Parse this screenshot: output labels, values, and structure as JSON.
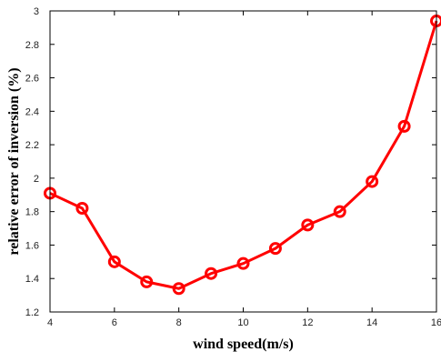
{
  "chart_data": {
    "type": "line",
    "title": "",
    "xlabel": "wind speed(m/s)",
    "ylabel": "relative error of inversion (%)",
    "xlim": [
      4,
      16
    ],
    "ylim": [
      1.2,
      3
    ],
    "xticks": [
      4,
      6,
      8,
      10,
      12,
      14,
      16
    ],
    "yticks": [
      1.2,
      1.4,
      1.6,
      1.8,
      2,
      2.2,
      2.4,
      2.6,
      2.8,
      3
    ],
    "xtick_labels": [
      "4",
      "6",
      "8",
      "10",
      "12",
      "14",
      "16"
    ],
    "ytick_labels": [
      "1.2",
      "1.4",
      "1.6",
      "1.8",
      "2",
      "2.2",
      "2.4",
      "2.6",
      "2.8",
      "3"
    ],
    "grid": false,
    "series": [
      {
        "color": "#ff0000",
        "marker": "circle",
        "x": [
          4,
          5,
          6,
          7,
          8,
          9,
          10,
          11,
          12,
          13,
          14,
          15,
          16
        ],
        "values": [
          1.91,
          1.82,
          1.5,
          1.38,
          1.34,
          1.43,
          1.49,
          1.58,
          1.72,
          1.8,
          1.98,
          2.31,
          2.94
        ]
      }
    ]
  }
}
